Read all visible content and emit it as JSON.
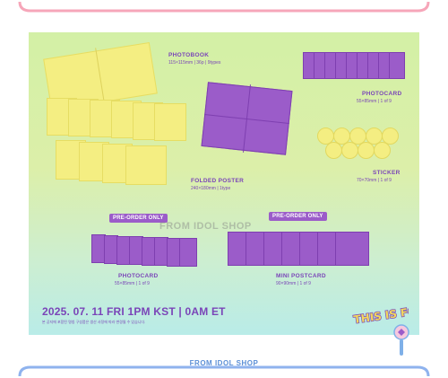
{
  "colors": {
    "frame_top": "#f6a6b9",
    "frame_bottom": "#8fb3ee",
    "accent_purple": "#9b5cc9",
    "accent_yellow": "#f4ee82",
    "footer_text": "#5b8fd6"
  },
  "components": {
    "photobook": {
      "name": "PHOTOBOOK",
      "spec": "115×115mm | 36p | 9types"
    },
    "photocard_main": {
      "name": "PHOTOCARD",
      "spec": "55×85mm | 1 of 9"
    },
    "folded_poster": {
      "name": "FOLDED POSTER",
      "spec": "240×180mm | 1type"
    },
    "sticker": {
      "name": "STICKER",
      "spec": "70×70mm | 1 of 9"
    }
  },
  "preorder": {
    "badge_label": "PRE-ORDER ONLY",
    "photocard": {
      "name": "PHOTOCARD",
      "spec": "55×85mm | 1 of 9"
    },
    "mini_postcard": {
      "name": "MINI POSTCARD",
      "spec": "90×90mm | 1 of 9"
    }
  },
  "release": {
    "date_line": "2025. 07. 11 FRI 1PM KST | 0AM ET",
    "notice": "본 공지에 포함된 명칭 구성품은 생산 사정에 따라 변경될 수 있습니다."
  },
  "logo": {
    "text": "THIS IS FOR"
  },
  "watermark": "FROM IDOL SHOP",
  "footer": {
    "shop_name": "FROM IDOL SHOP"
  }
}
